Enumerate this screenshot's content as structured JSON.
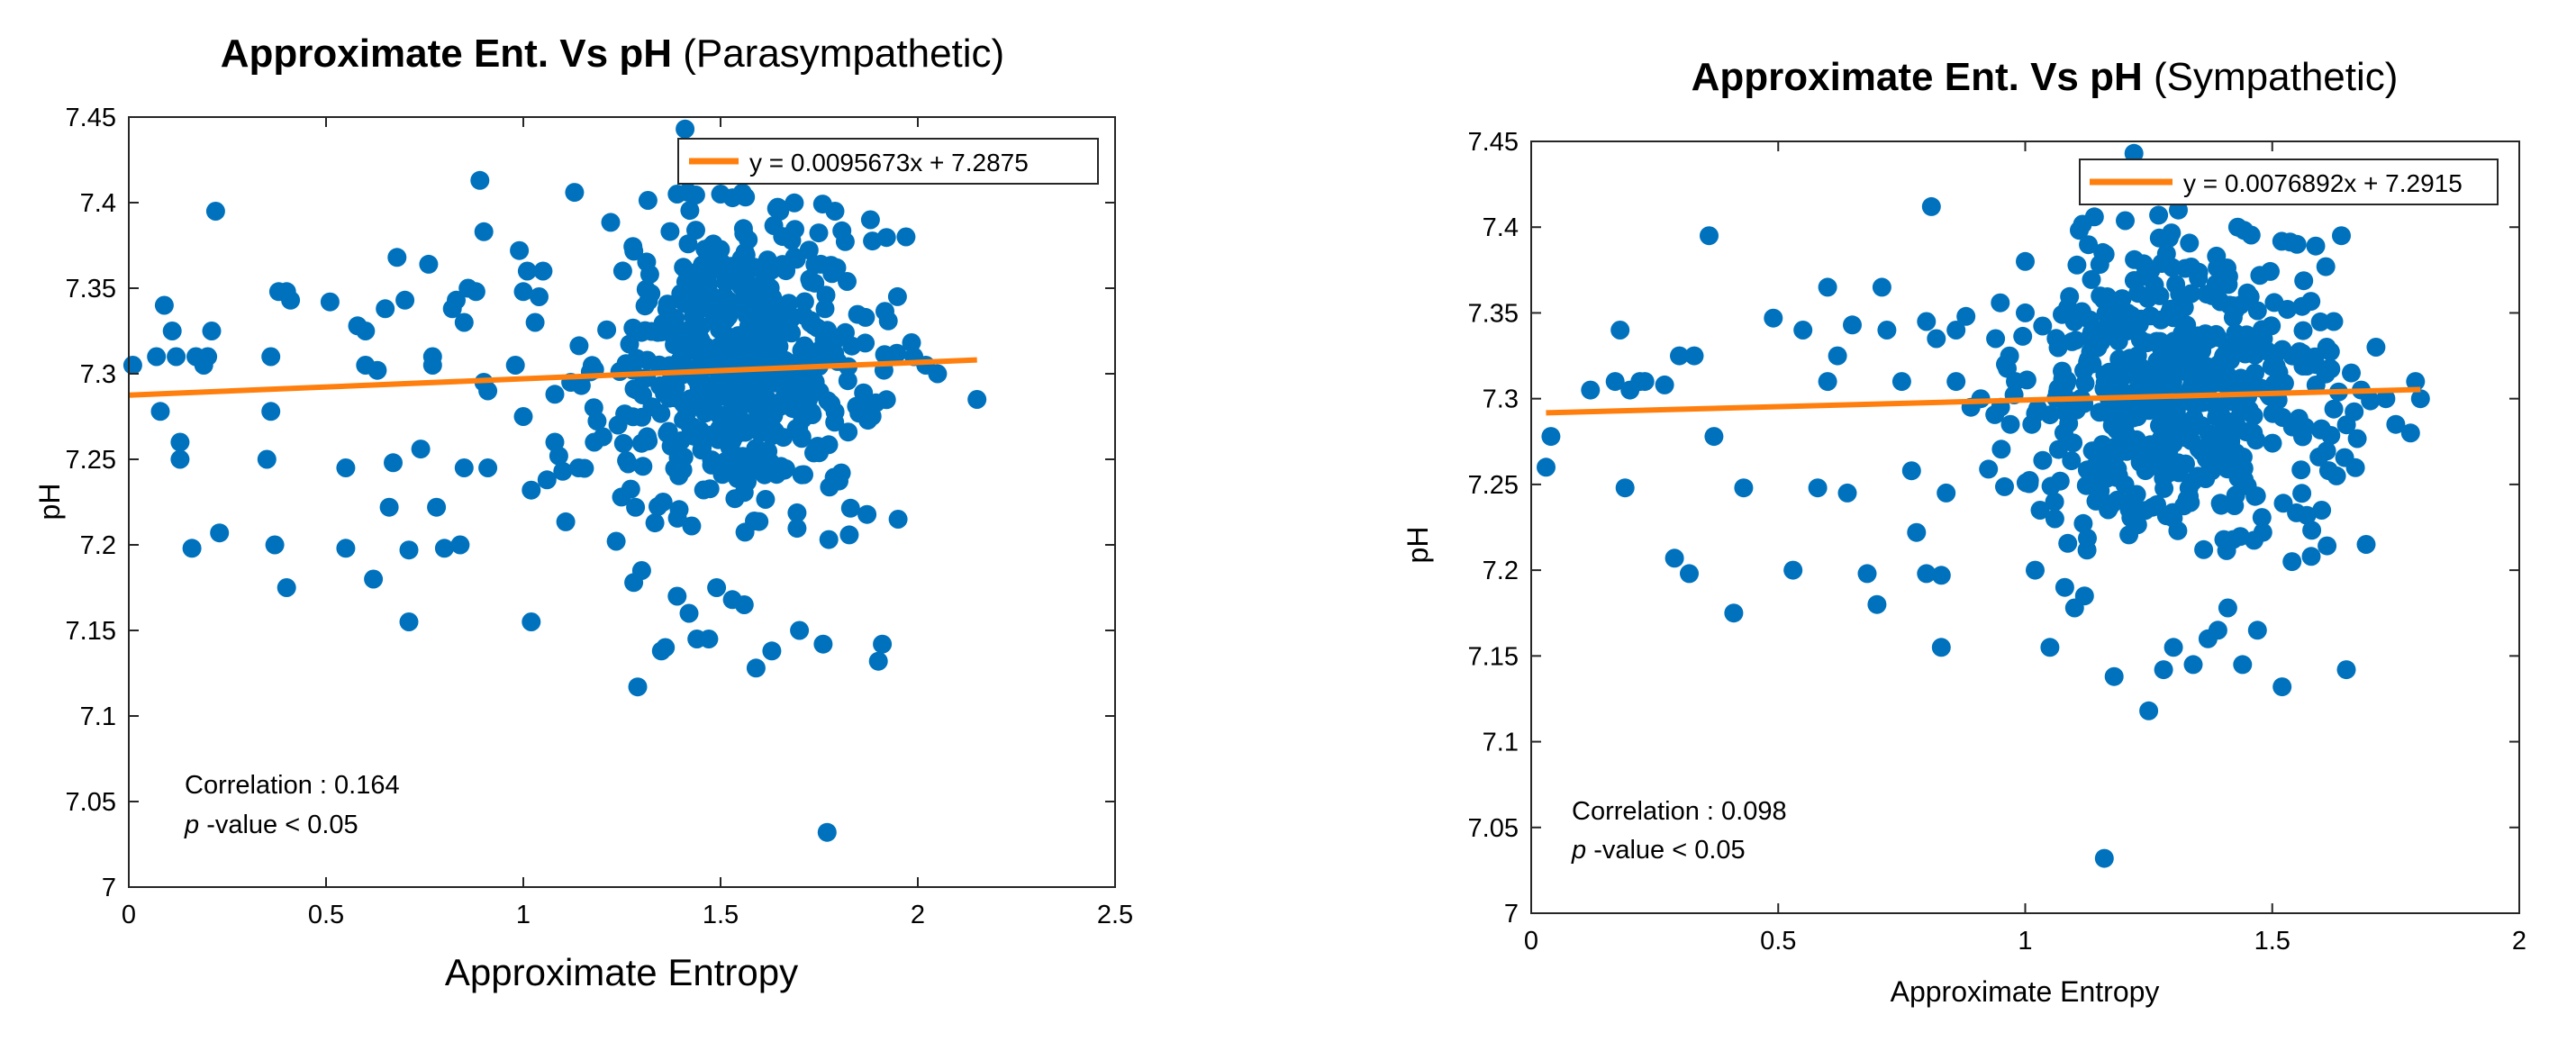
{
  "figure_colors": {
    "point": "#0072BD",
    "fit_line": "#FF7F0E",
    "axis": "#262626",
    "background": "#ffffff"
  },
  "chart_data": [
    {
      "type": "scatter",
      "title_bold": "Approximate Ent. Vs pH",
      "title_normal": "(Parasympathetic)",
      "xlabel": "Approximate Entropy",
      "ylabel": "pH",
      "xlim": [
        0,
        2.5
      ],
      "ylim": [
        7.0,
        7.45
      ],
      "xticks": [
        0,
        0.5,
        1,
        1.5,
        2,
        2.5
      ],
      "xtick_labels": [
        "0",
        "0.5",
        "1",
        "1.5",
        "2",
        "2.5"
      ],
      "yticks": [
        7.0,
        7.05,
        7.1,
        7.15,
        7.2,
        7.25,
        7.3,
        7.35,
        7.4,
        7.45
      ],
      "ytick_labels": [
        "7",
        "7.05",
        "7.1",
        "7.15",
        "7.2",
        "7.25",
        "7.3",
        "7.35",
        "7.4",
        "7.45"
      ],
      "legend": "y = 0.0095673x + 7.2875",
      "legend_position": "top-right",
      "fit": {
        "slope": 0.0095673,
        "intercept": 7.2875,
        "x_range": [
          0,
          2.15
        ]
      },
      "annotation_line1": "Correlation : 0.164",
      "annotation_p_italic": "p",
      "annotation_p_rest": "-value  < 0.05",
      "annotation_position": "bottom-left",
      "cluster": {
        "x_center": 1.55,
        "x_spread": 0.17,
        "y_center": 7.305,
        "y_spread": 0.045,
        "count": 520
      },
      "points": [
        [
          0.01,
          7.305
        ],
        [
          0.07,
          7.31
        ],
        [
          0.08,
          7.278
        ],
        [
          0.09,
          7.34
        ],
        [
          0.11,
          7.325
        ],
        [
          0.12,
          7.31
        ],
        [
          0.13,
          7.26
        ],
        [
          0.13,
          7.25
        ],
        [
          0.16,
          7.198
        ],
        [
          0.17,
          7.31
        ],
        [
          0.19,
          7.305
        ],
        [
          0.2,
          7.31
        ],
        [
          0.21,
          7.325
        ],
        [
          0.22,
          7.395
        ],
        [
          0.23,
          7.207
        ],
        [
          0.35,
          7.25
        ],
        [
          0.36,
          7.31
        ],
        [
          0.36,
          7.278
        ],
        [
          0.37,
          7.2
        ],
        [
          0.38,
          7.348
        ],
        [
          0.4,
          7.348
        ],
        [
          0.4,
          7.175
        ],
        [
          0.41,
          7.343
        ],
        [
          0.51,
          7.342
        ],
        [
          0.55,
          7.245
        ],
        [
          0.55,
          7.198
        ],
        [
          0.58,
          7.328
        ],
        [
          0.6,
          7.325
        ],
        [
          0.6,
          7.305
        ],
        [
          0.62,
          7.18
        ],
        [
          0.63,
          7.302
        ],
        [
          0.65,
          7.338
        ],
        [
          0.66,
          7.222
        ],
        [
          0.67,
          7.248
        ],
        [
          0.68,
          7.368
        ],
        [
          0.7,
          7.343
        ],
        [
          0.71,
          7.155
        ],
        [
          0.71,
          7.197
        ],
        [
          0.74,
          7.256
        ],
        [
          0.76,
          7.364
        ],
        [
          0.77,
          7.31
        ],
        [
          0.77,
          7.305
        ],
        [
          0.78,
          7.222
        ],
        [
          0.8,
          7.198
        ],
        [
          0.82,
          7.338
        ],
        [
          0.83,
          7.343
        ],
        [
          0.84,
          7.2
        ],
        [
          0.85,
          7.245
        ],
        [
          0.85,
          7.33
        ],
        [
          0.86,
          7.35
        ],
        [
          0.88,
          7.348
        ],
        [
          0.89,
          7.413
        ],
        [
          0.9,
          7.383
        ],
        [
          0.9,
          7.295
        ],
        [
          0.91,
          7.29
        ],
        [
          0.91,
          7.245
        ],
        [
          0.98,
          7.305
        ],
        [
          0.99,
          7.372
        ],
        [
          1.0,
          7.348
        ],
        [
          1.0,
          7.275
        ],
        [
          1.01,
          7.36
        ],
        [
          1.02,
          7.232
        ],
        [
          1.02,
          7.155
        ],
        [
          1.03,
          7.33
        ],
        [
          1.04,
          7.345
        ],
        [
          1.05,
          7.36
        ],
        [
          1.06,
          7.238
        ],
        [
          1.08,
          7.26
        ],
        [
          1.08,
          7.288
        ],
        [
          1.09,
          7.252
        ],
        [
          1.1,
          7.243
        ],
        [
          1.12,
          7.295
        ],
        [
          1.13,
          7.406
        ],
        [
          1.14,
          7.245
        ],
        [
          1.18,
          7.26
        ],
        [
          1.24,
          7.27
        ],
        [
          1.29,
          7.117
        ],
        [
          1.28,
          7.178
        ],
        [
          1.3,
          7.185
        ],
        [
          1.35,
          7.138
        ],
        [
          1.36,
          7.14
        ],
        [
          1.39,
          7.17
        ],
        [
          1.41,
          7.443
        ],
        [
          1.42,
          7.16
        ],
        [
          1.44,
          7.145
        ],
        [
          1.47,
          7.145
        ],
        [
          1.49,
          7.175
        ],
        [
          1.53,
          7.168
        ],
        [
          1.56,
          7.165
        ],
        [
          1.59,
          7.128
        ],
        [
          1.63,
          7.138
        ],
        [
          1.7,
          7.15
        ],
        [
          1.76,
          7.142
        ],
        [
          1.77,
          7.032
        ],
        [
          1.9,
          7.132
        ],
        [
          1.91,
          7.142
        ],
        [
          1.95,
          7.215
        ],
        [
          1.97,
          7.38
        ],
        [
          1.99,
          7.31
        ],
        [
          2.02,
          7.305
        ],
        [
          2.05,
          7.3
        ],
        [
          2.15,
          7.285
        ],
        [
          1.88,
          7.39
        ],
        [
          1.79,
          7.395
        ],
        [
          1.65,
          7.395
        ],
        [
          1.5,
          7.405
        ],
        [
          1.39,
          7.405
        ]
      ]
    },
    {
      "type": "scatter",
      "title_bold": "Approximate Ent. Vs pH",
      "title_normal": "(Sympathetic)",
      "xlabel": "Approximate Entropy",
      "ylabel": "pH",
      "xlim": [
        0,
        2
      ],
      "ylim": [
        7.0,
        7.45
      ],
      "xticks": [
        0,
        0.5,
        1,
        1.5,
        2
      ],
      "xtick_labels": [
        "0",
        "0.5",
        "1",
        "1.5",
        "2"
      ],
      "yticks": [
        7.0,
        7.05,
        7.1,
        7.15,
        7.2,
        7.25,
        7.3,
        7.35,
        7.4,
        7.45
      ],
      "ytick_labels": [
        "7",
        "7.05",
        "7.1",
        "7.15",
        "7.2",
        "7.25",
        "7.3",
        "7.35",
        "7.4",
        "7.45"
      ],
      "legend": "y = 0.0076892x + 7.2915",
      "legend_position": "top-right",
      "fit": {
        "slope": 0.0076892,
        "intercept": 7.2915,
        "x_range": [
          0.03,
          1.8
        ]
      },
      "annotation_line1": "Correlation : 0.098",
      "annotation_p_italic": "p",
      "annotation_p_rest": "-value < 0.05",
      "annotation_position": "bottom-left",
      "cluster": {
        "x_center": 1.32,
        "x_spread": 0.16,
        "y_center": 7.302,
        "y_spread": 0.045,
        "count": 520
      },
      "points": [
        [
          0.03,
          7.26
        ],
        [
          0.04,
          7.278
        ],
        [
          0.12,
          7.305
        ],
        [
          0.17,
          7.31
        ],
        [
          0.18,
          7.34
        ],
        [
          0.19,
          7.248
        ],
        [
          0.2,
          7.305
        ],
        [
          0.22,
          7.31
        ],
        [
          0.23,
          7.31
        ],
        [
          0.27,
          7.308
        ],
        [
          0.29,
          7.207
        ],
        [
          0.3,
          7.325
        ],
        [
          0.32,
          7.198
        ],
        [
          0.33,
          7.325
        ],
        [
          0.36,
          7.395
        ],
        [
          0.37,
          7.278
        ],
        [
          0.41,
          7.175
        ],
        [
          0.43,
          7.248
        ],
        [
          0.49,
          7.347
        ],
        [
          0.53,
          7.2
        ],
        [
          0.55,
          7.34
        ],
        [
          0.58,
          7.248
        ],
        [
          0.6,
          7.365
        ],
        [
          0.6,
          7.31
        ],
        [
          0.62,
          7.325
        ],
        [
          0.64,
          7.245
        ],
        [
          0.65,
          7.343
        ],
        [
          0.68,
          7.198
        ],
        [
          0.7,
          7.18
        ],
        [
          0.71,
          7.365
        ],
        [
          0.72,
          7.34
        ],
        [
          0.75,
          7.31
        ],
        [
          0.77,
          7.258
        ],
        [
          0.78,
          7.222
        ],
        [
          0.8,
          7.345
        ],
        [
          0.8,
          7.198
        ],
        [
          0.81,
          7.412
        ],
        [
          0.82,
          7.335
        ],
        [
          0.83,
          7.155
        ],
        [
          0.83,
          7.197
        ],
        [
          0.84,
          7.245
        ],
        [
          0.86,
          7.34
        ],
        [
          0.86,
          7.31
        ],
        [
          0.88,
          7.348
        ],
        [
          0.89,
          7.295
        ],
        [
          0.91,
          7.3
        ],
        [
          0.94,
          7.335
        ],
        [
          0.95,
          7.295
        ],
        [
          0.97,
          7.285
        ],
        [
          0.98,
          7.31
        ],
        [
          1.0,
          7.38
        ],
        [
          1.0,
          7.35
        ],
        [
          1.02,
          7.2
        ],
        [
          1.03,
          7.235
        ],
        [
          1.05,
          7.155
        ],
        [
          1.06,
          7.23
        ],
        [
          1.08,
          7.19
        ],
        [
          1.1,
          7.178
        ],
        [
          1.12,
          7.185
        ],
        [
          1.14,
          7.406
        ],
        [
          1.16,
          7.032
        ],
        [
          1.18,
          7.138
        ],
        [
          1.22,
          7.443
        ],
        [
          1.25,
          7.118
        ],
        [
          1.28,
          7.142
        ],
        [
          1.3,
          7.155
        ],
        [
          1.34,
          7.145
        ],
        [
          1.37,
          7.16
        ],
        [
          1.39,
          7.165
        ],
        [
          1.41,
          7.178
        ],
        [
          1.44,
          7.145
        ],
        [
          1.47,
          7.165
        ],
        [
          1.52,
          7.132
        ],
        [
          1.54,
          7.205
        ],
        [
          1.57,
          7.232
        ],
        [
          1.6,
          7.235
        ],
        [
          1.63,
          7.255
        ],
        [
          1.65,
          7.142
        ],
        [
          1.66,
          7.315
        ],
        [
          1.68,
          7.305
        ],
        [
          1.69,
          7.215
        ],
        [
          1.71,
          7.33
        ],
        [
          1.73,
          7.3
        ],
        [
          1.75,
          7.285
        ],
        [
          1.78,
          7.28
        ],
        [
          1.79,
          7.31
        ],
        [
          1.8,
          7.3
        ],
        [
          1.64,
          7.395
        ],
        [
          1.55,
          7.39
        ],
        [
          1.43,
          7.4
        ],
        [
          1.31,
          7.41
        ],
        [
          1.27,
          7.407
        ]
      ]
    }
  ]
}
